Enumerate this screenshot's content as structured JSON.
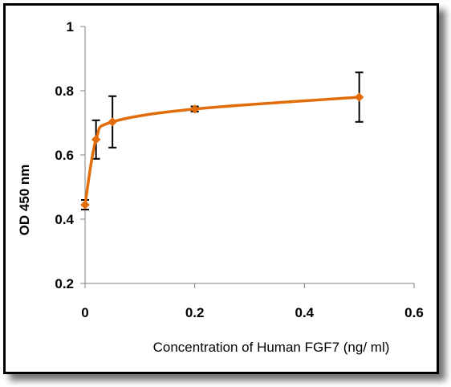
{
  "chart_data": {
    "type": "line",
    "title": "",
    "xlabel": "Concentration of Human FGF7 (ng/ ml)",
    "ylabel": "OD  450 nm",
    "xlim": [
      0,
      0.6
    ],
    "ylim": [
      0.2,
      1
    ],
    "x_ticks": [
      0,
      0.2,
      0.4,
      0.6
    ],
    "y_ticks": [
      0.2,
      0.4,
      0.6,
      0.8,
      1
    ],
    "x_tick_labels": [
      "0",
      "0.2",
      "0.4",
      "0.6"
    ],
    "y_tick_labels": [
      "0.2",
      "0.4",
      "0.6",
      "0.8",
      "1"
    ],
    "grid": false,
    "legend": "none",
    "series": [
      {
        "color": "#E36C0A",
        "marker": "diamond",
        "smooth": true,
        "x": [
          0,
          0.02,
          0.05,
          0.2,
          0.5
        ],
        "y": [
          0.445,
          0.648,
          0.703,
          0.743,
          0.78
        ],
        "error": [
          0.015,
          0.06,
          0.08,
          0.008,
          0.077
        ]
      }
    ]
  }
}
